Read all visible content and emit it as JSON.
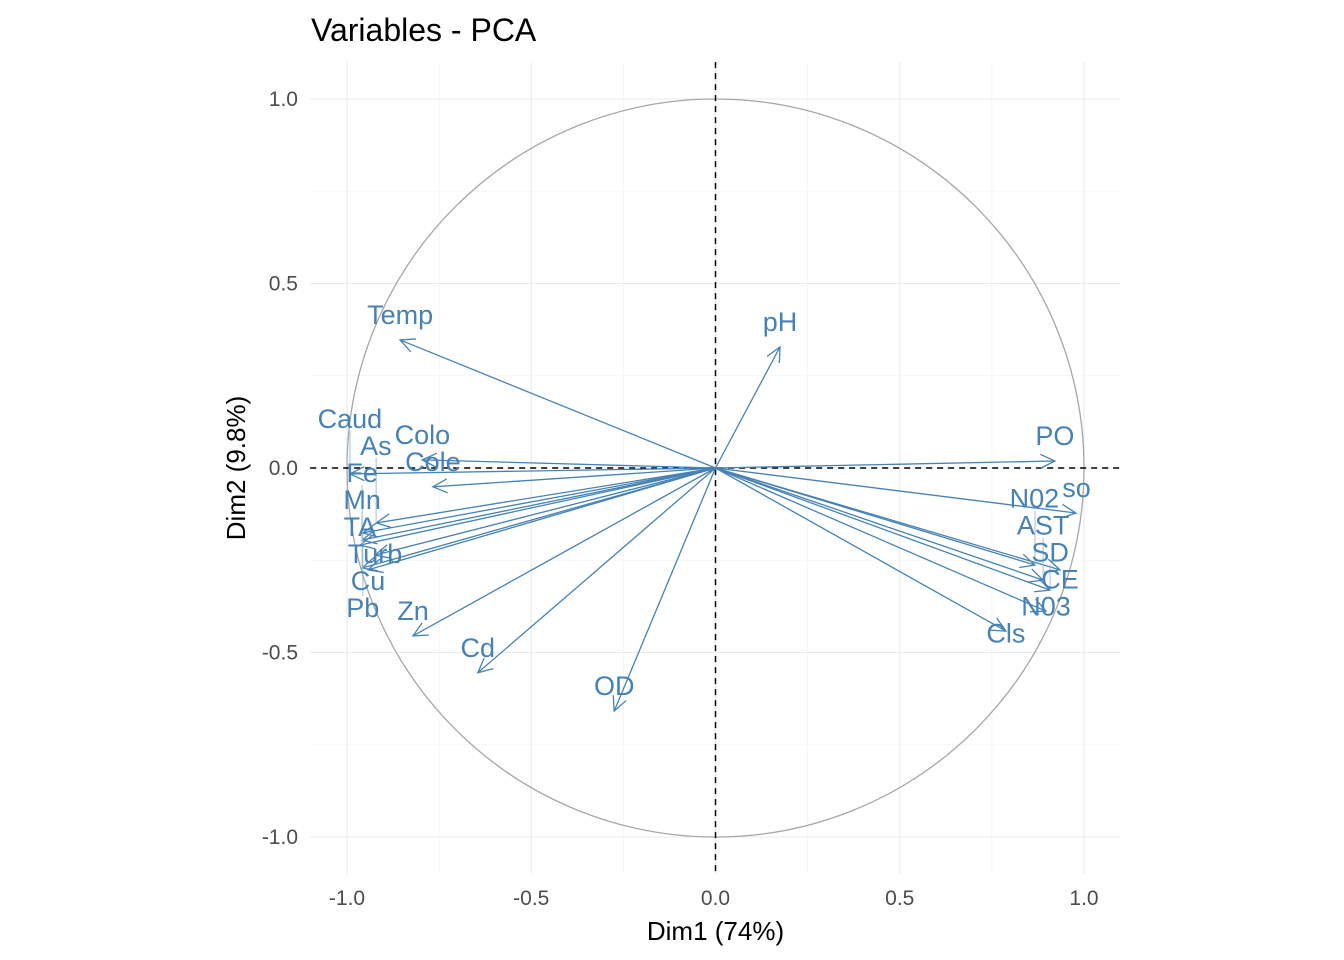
{
  "chart_data": {
    "type": "scatter",
    "subtype": "pca-variable-correlation-circle",
    "title": "Variables - PCA",
    "xlabel": "Dim1 (74%)",
    "ylabel": "Dim2 (9.8%)",
    "xlim": [
      -1.1,
      1.1
    ],
    "ylim": [
      -1.1,
      1.1
    ],
    "x_ticks": [
      "-1.0",
      "-0.5",
      "0.0",
      "0.5",
      "1.0"
    ],
    "y_ticks": [
      "1.0",
      "0.5",
      "0.0",
      "-0.5",
      "-1.0"
    ],
    "grid": true,
    "unit_circle": true,
    "reference_lines": "dashed at x=0 and y=0",
    "arrow_color": "#4682B4",
    "variables": [
      {
        "name": "Temp",
        "x": -0.856,
        "y": 0.347
      },
      {
        "name": "pH",
        "x": 0.175,
        "y": 0.328
      },
      {
        "name": "PO",
        "x": 0.921,
        "y": 0.019
      },
      {
        "name": "so",
        "x": 0.978,
        "y": -0.122
      },
      {
        "name": "Caud",
        "x": -0.992,
        "y": -0.016
      },
      {
        "name": "Colo",
        "x": -0.796,
        "y": 0.022
      },
      {
        "name": "Cole",
        "x": -0.767,
        "y": -0.051
      },
      {
        "name": "Zn",
        "x": -0.821,
        "y": -0.455
      },
      {
        "name": "Cd",
        "x": -0.645,
        "y": -0.555
      },
      {
        "name": "OD",
        "x": -0.275,
        "y": -0.659
      },
      {
        "name": "Cls",
        "x": 0.788,
        "y": -0.442
      },
      {
        "name": "N03",
        "x": 0.897,
        "y": -0.388
      },
      {
        "name": "N02",
        "x": 0.867,
        "y": -0.263
      },
      {
        "name": "CE",
        "x": 0.935,
        "y": -0.276
      },
      {
        "name": "AST",
        "x": 0.889,
        "y": -0.304
      },
      {
        "name": "SD",
        "x": 0.908,
        "y": -0.331
      },
      {
        "name": "As",
        "x": -0.921,
        "y": -0.149
      },
      {
        "name": "Pb",
        "x": -0.957,
        "y": -0.176
      },
      {
        "name": "Fe",
        "x": -0.959,
        "y": -0.195
      },
      {
        "name": "TA",
        "x": -0.965,
        "y": -0.209
      },
      {
        "name": "Turb",
        "x": -0.924,
        "y": -0.236
      },
      {
        "name": "Mn",
        "x": -0.959,
        "y": -0.271
      },
      {
        "name": "Cu",
        "x": -0.943,
        "y": -0.276
      }
    ]
  }
}
